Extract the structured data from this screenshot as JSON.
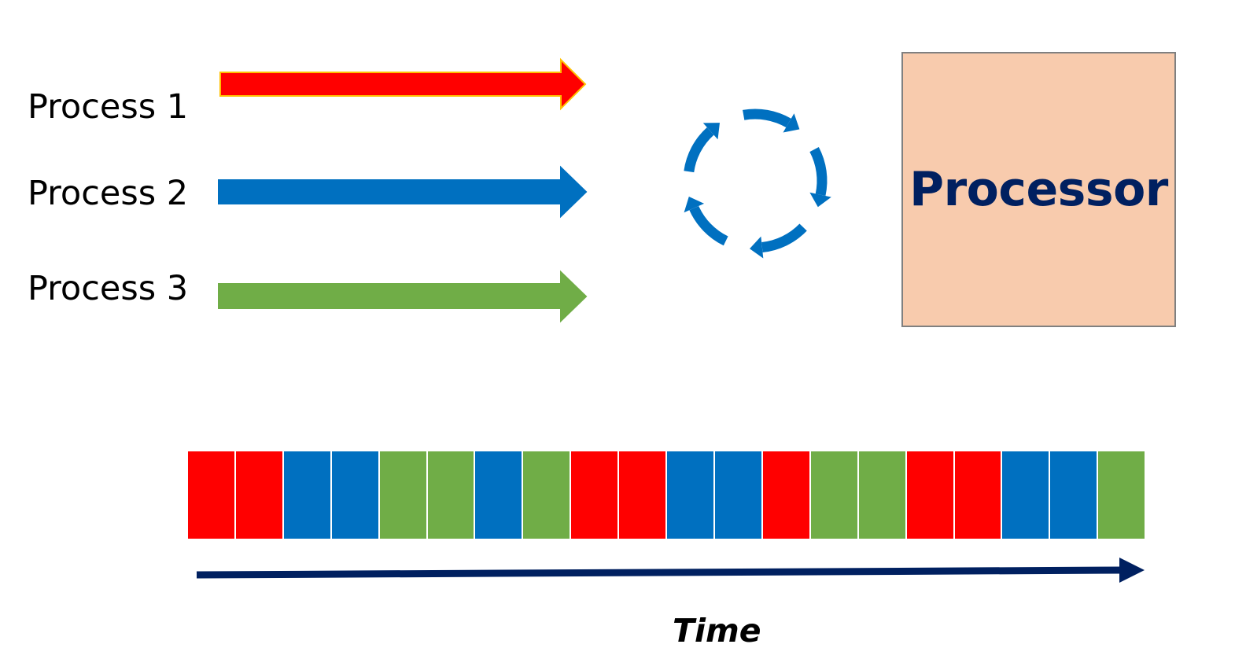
{
  "processes": [
    {
      "label": "Process 1",
      "color": "#ff0000",
      "outline": "#ffc000"
    },
    {
      "label": "Process 2",
      "color": "#0070c0",
      "outline": "#0070c0"
    },
    {
      "label": "Process 3",
      "color": "#70ad47",
      "outline": "#70ad47"
    }
  ],
  "cycle": {
    "icon": "cycle-arrows-icon",
    "color": "#0070c0"
  },
  "processor": {
    "label": "Processor",
    "fill": "#f8cbad",
    "text_color": "#002060"
  },
  "timeline": {
    "slots": [
      "Process 1",
      "Process 1",
      "Process 2",
      "Process 2",
      "Process 3",
      "Process 3",
      "Process 2",
      "Process 3",
      "Process 1",
      "Process 1",
      "Process 2",
      "Process 2",
      "Process 1",
      "Process 3",
      "Process 3",
      "Process 1",
      "Process 1",
      "Process 2",
      "Process 2",
      "Process 3"
    ]
  },
  "time_axis": {
    "label": "Time",
    "color": "#002060"
  }
}
